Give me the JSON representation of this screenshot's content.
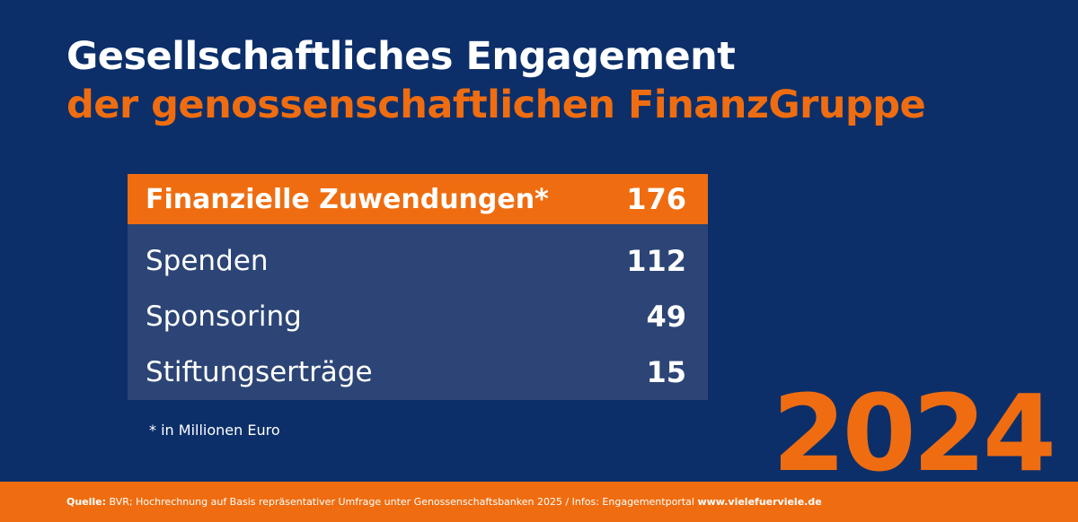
{
  "header": {
    "title_line1": "Gesellschaftliches Engagement",
    "title_line2": "der genossenschaftlichen FinanzGruppe"
  },
  "chart_data": {
    "type": "table",
    "total": {
      "label": "Finanzielle Zuwendungen*",
      "value": 176
    },
    "rows": [
      {
        "label": "Spenden",
        "value": 112
      },
      {
        "label": "Sponsoring",
        "value": 49
      },
      {
        "label": "Stiftungserträge",
        "value": 15
      }
    ],
    "footnote": "* in Millionen Euro",
    "year": "2024"
  },
  "footer": {
    "source_label": "Quelle:",
    "source_text": " BVR; Hochrechnung auf Basis repräsentativer Umfrage unter Genossenschaftsbanken 2025 / Infos: Engagementportal ",
    "link": "www.vielefuerviele.de"
  },
  "colors": {
    "background": "#0c2f6a",
    "accent": "#ef6d10",
    "table_body": "#2c4576",
    "text": "#ffffff"
  }
}
